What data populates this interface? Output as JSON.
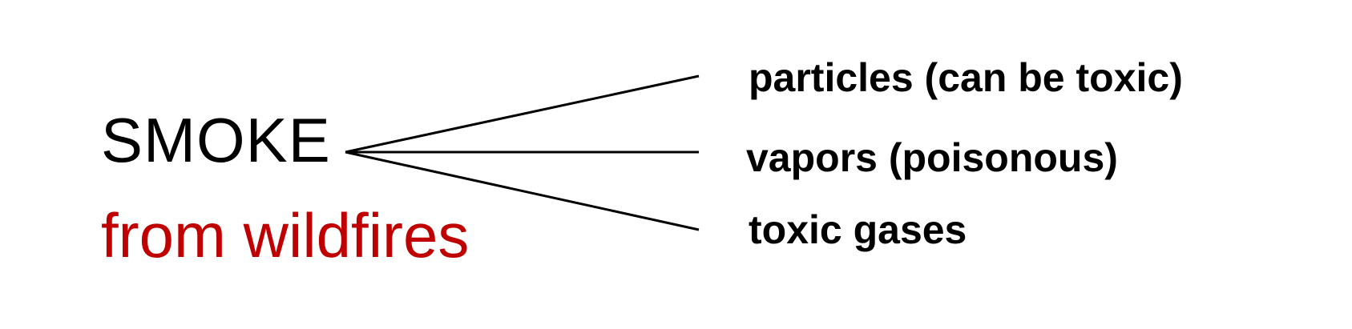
{
  "diagram": {
    "root": {
      "label": "SMOKE",
      "sublabel": "from wildfires",
      "sublabel_color": "#c00000"
    },
    "branches": [
      {
        "label": "particles (can be toxic)"
      },
      {
        "label": "vapors (poisonous)"
      },
      {
        "label": "toxic gases"
      }
    ],
    "line_color": "#000000"
  }
}
